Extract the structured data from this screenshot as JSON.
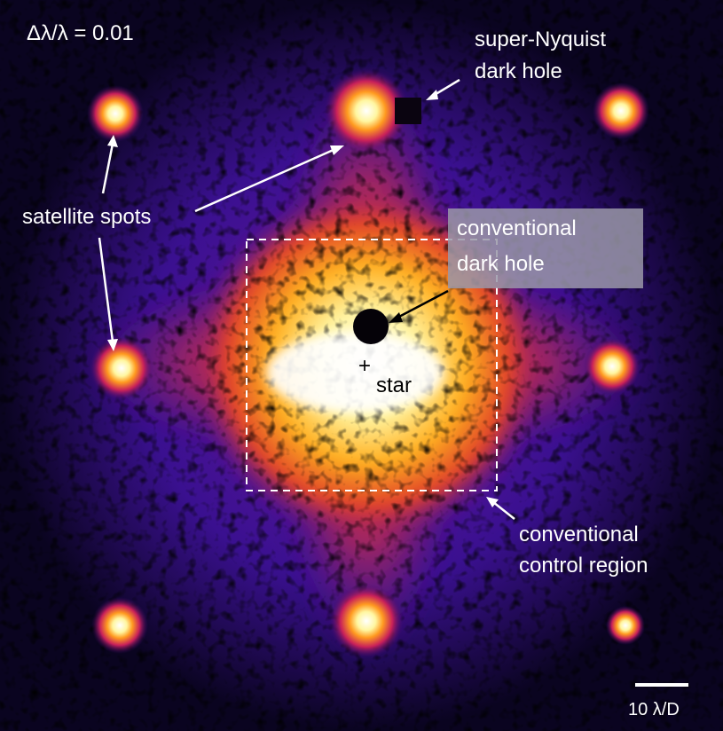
{
  "header": {
    "bandwidth": "Δλ/λ = 0.01"
  },
  "labels": {
    "super_nyquist": [
      "super-Nyquist",
      "dark hole"
    ],
    "satellite_spots": "satellite spots",
    "conventional_dark_hole": [
      "conventional",
      "dark hole"
    ],
    "star": {
      "marker": "+",
      "text": "star"
    },
    "control_region": [
      "conventional",
      "control region"
    ],
    "scale_bar": "10 λ/D"
  }
}
